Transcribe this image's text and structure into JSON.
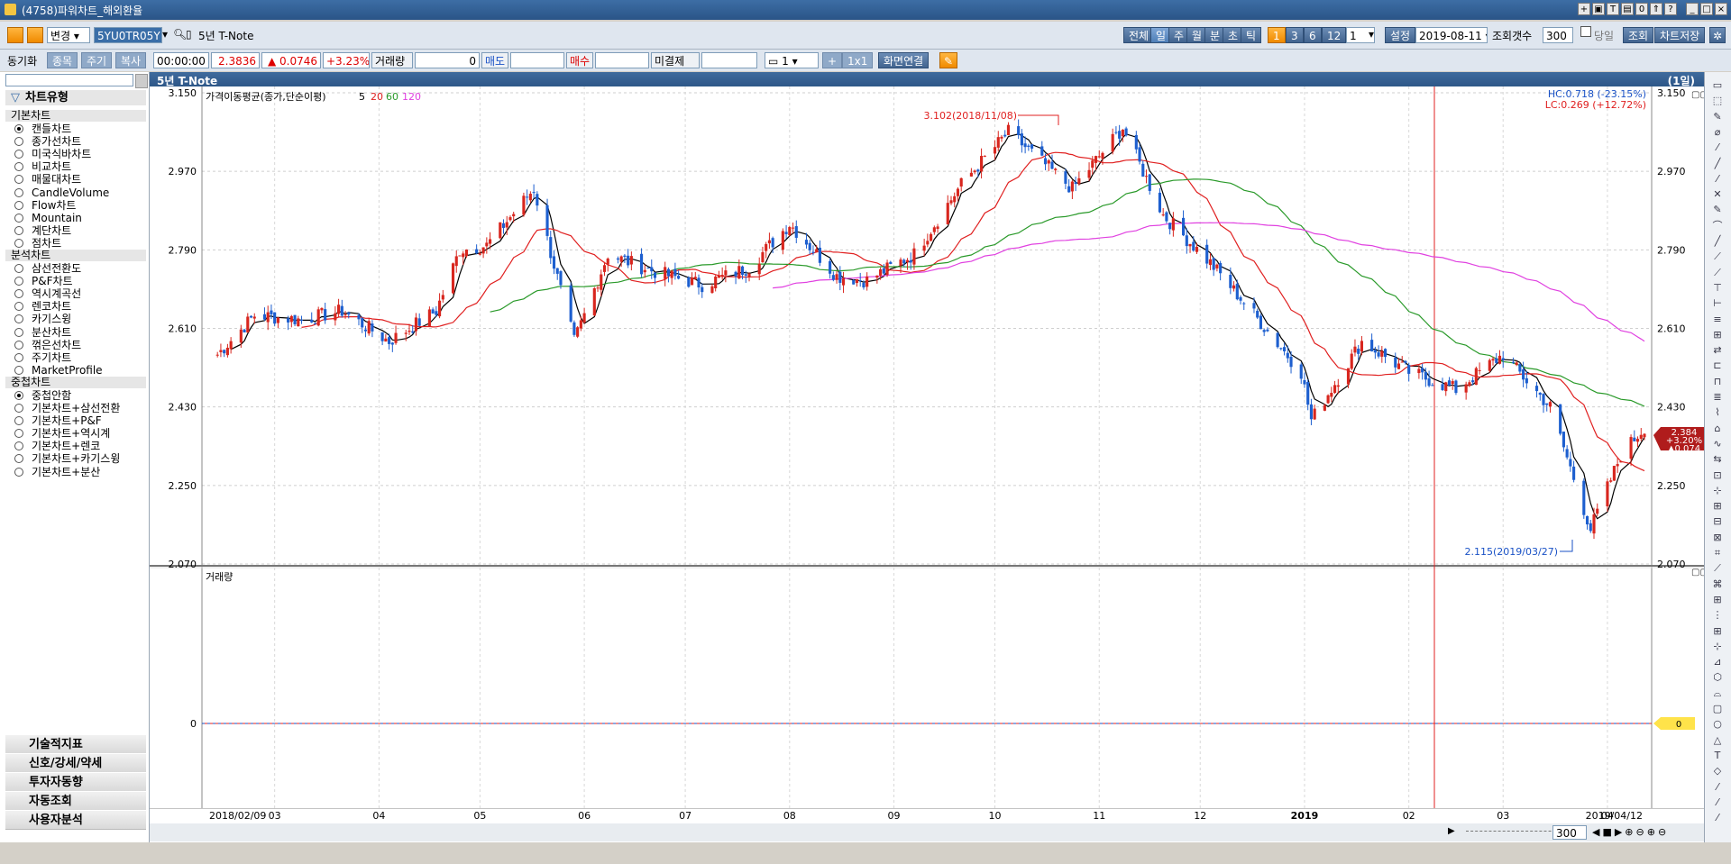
{
  "window": {
    "title": "(4758)파워차트_해외환율"
  },
  "toolbar": {
    "change_label": "변경",
    "symbol_code": "5YU0TR05Y",
    "instrument_name": "5년 T-Note",
    "period_buttons": [
      "전체",
      "일",
      "주",
      "월",
      "분",
      "초",
      "틱"
    ],
    "number_buttons": [
      "1",
      "3",
      "6",
      "12"
    ],
    "interval_value": "1",
    "settings_label": "설정",
    "date_value": "2019-08-11",
    "query_count_label": "조회갯수",
    "query_count_value": "300",
    "same_day_label": "당일",
    "query_button": "조회",
    "save_chart_button": "차트저장"
  },
  "toolbar2": {
    "sync_label": "동기화",
    "tabs": [
      "종목",
      "주기",
      "복사"
    ],
    "time": "00:00:00",
    "price": "2.3836",
    "change": "▲ 0.0746",
    "change_pct": "+3.23%",
    "volume_label": "거래량",
    "volume_value": "0",
    "ask_label": "매도",
    "bid_label": "매수",
    "open_interest_label": "미결제",
    "split_value": "1",
    "layout_label": "1x1",
    "screen_link_label": "화면연결"
  },
  "sidebar": {
    "chart_type_header": "차트유형",
    "sections": [
      {
        "title": "기본차트",
        "items": [
          "캔들차트",
          "종가선차트",
          "미국식바차트",
          "비교차트",
          "매물대차트",
          "CandleVolume",
          "Flow차트",
          "Mountain",
          "계단차트",
          "점차트"
        ]
      },
      {
        "title": "분석차트",
        "items": [
          "삼선전환도",
          "P&F차트",
          "역시계곡선",
          "렌코차트",
          "카기스윙",
          "분산차트",
          "꺾은선차트",
          "주기차트",
          "MarketProfile"
        ]
      },
      {
        "title": "중첩차트",
        "items": [
          "중첩안함",
          "기본차트+삼선전환",
          "기본차트+P&F",
          "기본차트+역시계",
          "기본차트+렌코",
          "기본차트+카기스윙",
          "기본차트+분산"
        ]
      }
    ],
    "bottom_tabs": [
      "기술적지표",
      "신호/강세/약세",
      "투자자동향",
      "자동조회",
      "사용자분석"
    ]
  },
  "chart": {
    "panel_title": "5년 T-Note",
    "period_badge": "(1일)",
    "legend_title": "가격이동평균(종가,단순이평)",
    "legend_periods": [
      "5",
      "20",
      "60",
      "120"
    ],
    "hc_label": "HC:0.718 (-23.15%)",
    "lc_label": "LC:0.269 (+12.72%)",
    "high_annotation": "3.102(2018/11/08)",
    "low_annotation": "2.115(2019/03/27)",
    "last_price_box": [
      "2.384",
      "+3.20%",
      "▲0.074"
    ],
    "volume_title": "거래량",
    "volume_zero": "0",
    "volume_zero_right": "0",
    "y_ticks": [
      "3.150",
      "2.970",
      "2.790",
      "2.610",
      "2.430",
      "2.250",
      "2.070"
    ],
    "x_ticks": [
      "2018/02/09",
      "03",
      "04",
      "05",
      "06",
      "07",
      "08",
      "09",
      "10",
      "11",
      "12",
      "2019",
      "02",
      "03",
      "04",
      "2019/04/12"
    ],
    "scroll_value": "300"
  },
  "chart_data": {
    "type": "candlestick",
    "title": "5년 T-Note",
    "period": "1일",
    "x_range": [
      "2018/02/09",
      "2019/04/12"
    ],
    "ylim": [
      2.07,
      3.15
    ],
    "series": [
      {
        "name": "5",
        "color": "#000000"
      },
      {
        "name": "20",
        "color": "#e02020"
      },
      {
        "name": "60",
        "color": "#2a9a2a"
      },
      {
        "name": "120",
        "color": "#e040e0"
      }
    ],
    "price_path": [
      {
        "date": "2018-02-12",
        "close": 2.55
      },
      {
        "date": "2018-02-23",
        "close": 2.64
      },
      {
        "date": "2018-03-09",
        "close": 2.63
      },
      {
        "date": "2018-03-21",
        "close": 2.65
      },
      {
        "date": "2018-04-04",
        "close": 2.58
      },
      {
        "date": "2018-04-18",
        "close": 2.65
      },
      {
        "date": "2018-04-25",
        "close": 2.79
      },
      {
        "date": "2018-05-03",
        "close": 2.8
      },
      {
        "date": "2018-05-17",
        "close": 2.93
      },
      {
        "date": "2018-05-29",
        "close": 2.58
      },
      {
        "date": "2018-06-08",
        "close": 2.78
      },
      {
        "date": "2018-06-22",
        "close": 2.74
      },
      {
        "date": "2018-07-06",
        "close": 2.71
      },
      {
        "date": "2018-07-20",
        "close": 2.75
      },
      {
        "date": "2018-08-01",
        "close": 2.85
      },
      {
        "date": "2018-08-15",
        "close": 2.73
      },
      {
        "date": "2018-08-24",
        "close": 2.72
      },
      {
        "date": "2018-09-07",
        "close": 2.78
      },
      {
        "date": "2018-09-21",
        "close": 2.94
      },
      {
        "date": "2018-10-05",
        "close": 3.06
      },
      {
        "date": "2018-10-24",
        "close": 2.93
      },
      {
        "date": "2018-11-08",
        "close": 3.07
      },
      {
        "date": "2018-11-20",
        "close": 2.87
      },
      {
        "date": "2018-12-04",
        "close": 2.76
      },
      {
        "date": "2018-12-14",
        "close": 2.67
      },
      {
        "date": "2018-12-31",
        "close": 2.51
      },
      {
        "date": "2019-01-03",
        "close": 2.4
      },
      {
        "date": "2019-01-18",
        "close": 2.58
      },
      {
        "date": "2019-02-01",
        "close": 2.51
      },
      {
        "date": "2019-02-15",
        "close": 2.47
      },
      {
        "date": "2019-03-01",
        "close": 2.55
      },
      {
        "date": "2019-03-15",
        "close": 2.43
      },
      {
        "date": "2019-03-27",
        "close": 2.15
      },
      {
        "date": "2019-04-05",
        "close": 2.32
      },
      {
        "date": "2019-04-12",
        "close": 2.384
      }
    ],
    "annotations": [
      {
        "label": "3.102(2018/11/08)",
        "type": "high"
      },
      {
        "label": "2.115(2019/03/27)",
        "type": "low"
      }
    ]
  }
}
